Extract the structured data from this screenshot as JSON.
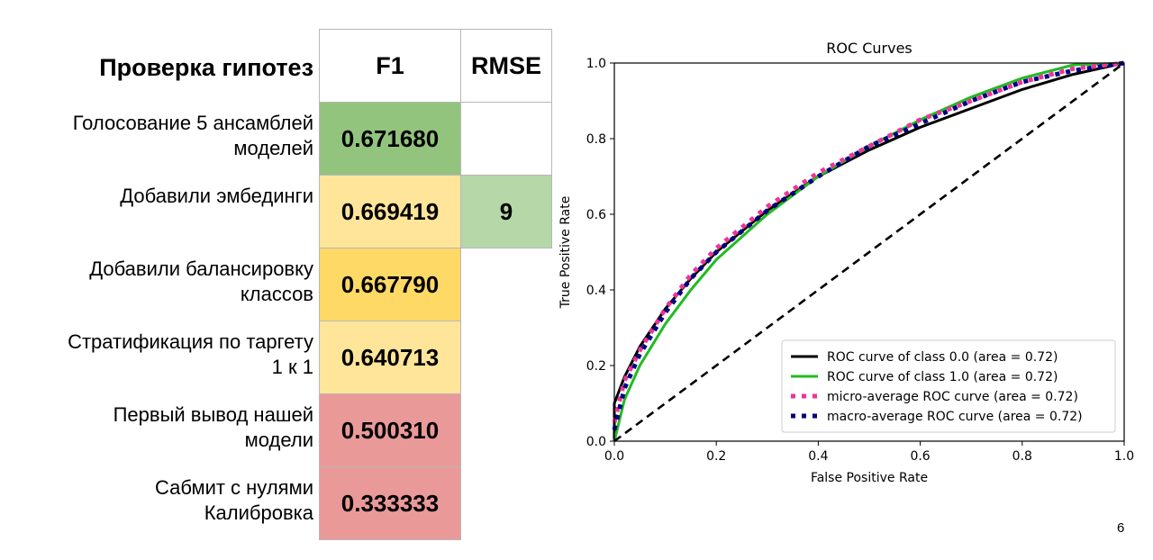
{
  "table": {
    "title": "Проверка гипотез",
    "headers": {
      "f1": "F1",
      "rmse": "RMSE"
    },
    "rows": [
      {
        "label": "Голосование 5 ансамблей\nмоделей",
        "f1": "0.671680",
        "rmse": "",
        "f1_color": "#93c47d",
        "rmse_color": "#ffffff"
      },
      {
        "label": "Добавили эмбединги",
        "f1": "0.669419",
        "rmse": "9",
        "f1_color": "#ffe599",
        "rmse_color": "#b6d7a8"
      },
      {
        "label": "Добавили балансировку\nклассов",
        "f1": "0.667790",
        "rmse": "",
        "f1_color": "#ffd966",
        "rmse_color": "#ffffff"
      },
      {
        "label": "Стратификация по таргету\n1 к 1",
        "f1": "0.640713",
        "rmse": "",
        "f1_color": "#ffe599",
        "rmse_color": "#ffffff"
      },
      {
        "label": "Первый вывод нашей\nмодели",
        "f1": "0.500310",
        "rmse": "",
        "f1_color": "#ea9999",
        "rmse_color": "#ffffff"
      },
      {
        "label": "Сабмит с нулями\nКалибровка",
        "f1": "0.333333",
        "rmse": "",
        "f1_color": "#ea9999",
        "rmse_color": "#ffffff"
      }
    ]
  },
  "chart_data": {
    "type": "line",
    "title": "ROC Curves",
    "xlabel": "False Positive Rate",
    "ylabel": "True Positive Rate",
    "xlim": [
      0,
      1
    ],
    "ylim": [
      0,
      1
    ],
    "xticks": [
      "0.0",
      "0.2",
      "0.4",
      "0.6",
      "0.8",
      "1.0"
    ],
    "yticks": [
      "0.0",
      "0.2",
      "0.4",
      "0.6",
      "0.8",
      "1.0"
    ],
    "grid": false,
    "legend_position": "lower-right",
    "series": [
      {
        "name": "ROC curve of class 0.0 (area = 0.72)",
        "color": "#000000",
        "style": "solid",
        "x": [
          0,
          0,
          0.02,
          0.05,
          0.1,
          0.15,
          0.2,
          0.3,
          0.4,
          0.5,
          0.6,
          0.7,
          0.8,
          0.9,
          1.0
        ],
        "y": [
          0,
          0.1,
          0.17,
          0.25,
          0.35,
          0.43,
          0.5,
          0.61,
          0.7,
          0.77,
          0.83,
          0.88,
          0.93,
          0.97,
          1.0
        ]
      },
      {
        "name": "ROC curve of class 1.0 (area = 0.72)",
        "color": "#22bb22",
        "style": "solid",
        "x": [
          0,
          0.02,
          0.05,
          0.1,
          0.15,
          0.2,
          0.3,
          0.4,
          0.5,
          0.6,
          0.7,
          0.8,
          0.9,
          1.0
        ],
        "y": [
          0,
          0.11,
          0.2,
          0.31,
          0.4,
          0.48,
          0.6,
          0.7,
          0.78,
          0.85,
          0.91,
          0.96,
          0.995,
          1.0
        ]
      },
      {
        "name": "micro-average ROC curve (area = 0.72)",
        "color": "#ee3399",
        "style": "dotted",
        "x": [
          0,
          0.02,
          0.05,
          0.1,
          0.15,
          0.2,
          0.3,
          0.4,
          0.5,
          0.6,
          0.7,
          0.8,
          0.9,
          1.0
        ],
        "y": [
          0.05,
          0.16,
          0.24,
          0.35,
          0.44,
          0.51,
          0.62,
          0.71,
          0.78,
          0.85,
          0.9,
          0.95,
          0.985,
          1.0
        ]
      },
      {
        "name": "macro-average ROC curve (area = 0.72)",
        "color": "#000080",
        "style": "dotted",
        "x": [
          0,
          0.02,
          0.05,
          0.1,
          0.15,
          0.2,
          0.3,
          0.4,
          0.5,
          0.6,
          0.7,
          0.8,
          0.9,
          1.0
        ],
        "y": [
          0.03,
          0.14,
          0.23,
          0.34,
          0.43,
          0.5,
          0.61,
          0.7,
          0.78,
          0.84,
          0.9,
          0.95,
          0.98,
          1.0
        ]
      },
      {
        "name": "",
        "color": "#000000",
        "style": "dashed",
        "x": [
          0,
          1
        ],
        "y": [
          0,
          1
        ]
      }
    ]
  },
  "page_number": "6"
}
